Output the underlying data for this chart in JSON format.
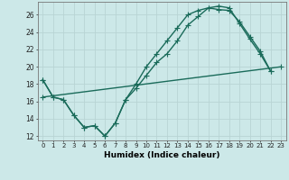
{
  "title": "",
  "xlabel": "Humidex (Indice chaleur)",
  "ylabel": "",
  "bg_color": "#cce8e8",
  "line_color": "#1a6b5a",
  "grid_color": "#b8d4d4",
  "xlim": [
    -0.5,
    23.5
  ],
  "ylim": [
    11.5,
    27.5
  ],
  "xticks": [
    0,
    1,
    2,
    3,
    4,
    5,
    6,
    7,
    8,
    9,
    10,
    11,
    12,
    13,
    14,
    15,
    16,
    17,
    18,
    19,
    20,
    21,
    22,
    23
  ],
  "yticks": [
    12,
    14,
    16,
    18,
    20,
    22,
    24,
    26
  ],
  "line1_x": [
    0,
    1,
    2,
    3,
    4,
    5,
    6,
    7,
    8,
    9,
    10,
    11,
    12,
    13,
    14,
    15,
    16,
    17,
    18,
    19,
    20,
    21,
    22
  ],
  "line1_y": [
    18.5,
    16.5,
    16.2,
    14.4,
    13.0,
    13.2,
    12.0,
    13.5,
    16.2,
    17.5,
    19.0,
    20.5,
    21.5,
    23.0,
    24.8,
    25.8,
    26.8,
    27.0,
    26.8,
    25.0,
    23.2,
    21.5,
    19.5
  ],
  "line2_x": [
    0,
    1,
    2,
    3,
    4,
    5,
    6,
    7,
    8,
    9,
    10,
    11,
    12,
    13,
    14,
    15,
    16,
    17,
    18,
    19,
    20,
    21,
    22
  ],
  "line2_y": [
    18.5,
    16.5,
    16.2,
    14.4,
    13.0,
    13.2,
    12.0,
    13.5,
    16.2,
    18.0,
    20.0,
    21.5,
    23.0,
    24.5,
    26.0,
    26.5,
    26.8,
    26.6,
    26.5,
    25.2,
    23.5,
    21.8,
    19.5
  ],
  "line3_x": [
    0,
    23
  ],
  "line3_y": [
    16.5,
    20.0
  ],
  "marker": "+",
  "markersize": 4,
  "linewidth": 1.0
}
